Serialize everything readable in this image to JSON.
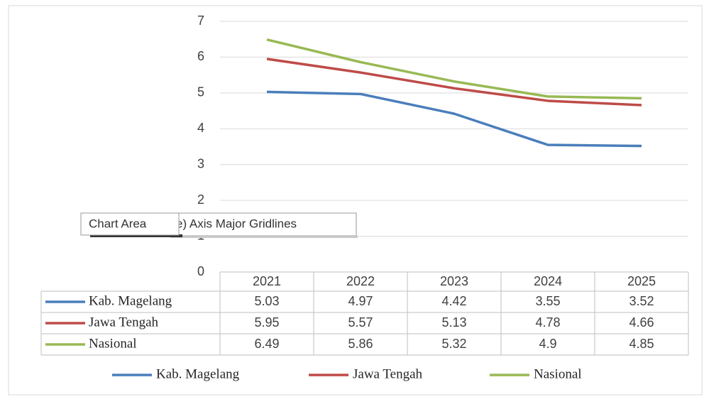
{
  "chart_data": {
    "type": "line",
    "categories": [
      "2021",
      "2022",
      "2023",
      "2024",
      "2025"
    ],
    "series": [
      {
        "name": "Kab. Magelang",
        "color": "#4a7ebb",
        "values": [
          5.03,
          4.97,
          4.42,
          3.55,
          3.52
        ]
      },
      {
        "name": "Jawa Tengah",
        "color": "#be4b48",
        "values": [
          5.95,
          5.57,
          5.13,
          4.78,
          4.66
        ]
      },
      {
        "name": "Nasional",
        "color": "#98b954",
        "values": [
          6.49,
          5.86,
          5.32,
          4.9,
          4.85
        ]
      }
    ],
    "ylim": [
      0,
      7
    ],
    "yticks": [
      0,
      1,
      2,
      3,
      4,
      5,
      6,
      7
    ],
    "grid": true,
    "legend": "bottom",
    "data_table": true
  },
  "tooltips": [
    "Chart Area",
    "e) Axis Major Gridlines"
  ]
}
